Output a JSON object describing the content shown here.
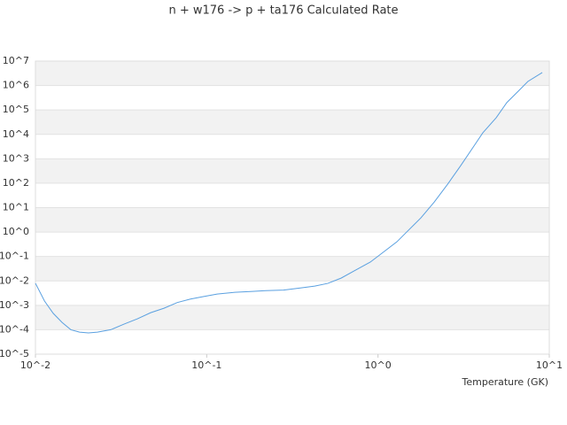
{
  "chart_data": {
    "type": "line",
    "title": "n + w176 -> p + ta176 Calculated Rate",
    "x_label": "Temperature (GK)",
    "log_x": true,
    "log_y": true,
    "grid": "alternating-bands",
    "xlim": [
      0.01,
      10
    ],
    "ylim": [
      1e-05,
      10000000.0
    ],
    "xticks": [
      {
        "value": 0.01,
        "label": "10^-2"
      },
      {
        "value": 0.1,
        "label": "10^-1"
      },
      {
        "value": 1,
        "label": "10^0"
      },
      {
        "value": 10,
        "label": "10^1"
      }
    ],
    "yticks": [
      {
        "value": 1e-05,
        "label": "10^-5"
      },
      {
        "value": 0.0001,
        "label": "10^-4"
      },
      {
        "value": 0.001,
        "label": "10^-3"
      },
      {
        "value": 0.01,
        "label": "10^-2"
      },
      {
        "value": 0.1,
        "label": "10^-1"
      },
      {
        "value": 1,
        "label": "10^0"
      },
      {
        "value": 10,
        "label": "10^1"
      },
      {
        "value": 100,
        "label": "10^2"
      },
      {
        "value": 1000,
        "label": "10^3"
      },
      {
        "value": 10000,
        "label": "10^4"
      },
      {
        "value": 100000,
        "label": "10^5"
      },
      {
        "value": 1000000,
        "label": "10^6"
      },
      {
        "value": 10000000,
        "label": "10^7"
      }
    ],
    "x": [
      0.01,
      0.0113,
      0.0127,
      0.0143,
      0.0161,
      0.0181,
      0.0204,
      0.023,
      0.0275,
      0.0329,
      0.0394,
      0.0471,
      0.0563,
      0.0673,
      0.0804,
      0.0962,
      0.115,
      0.146,
      0.185,
      0.221,
      0.281,
      0.356,
      0.427,
      0.509,
      0.609,
      0.728,
      0.902,
      1.04,
      1.29,
      1.49,
      1.78,
      2.13,
      2.55,
      3.04,
      3.63,
      4.09,
      4.9,
      5.65,
      6.6,
      7.5,
      9.1
    ],
    "series": [
      {
        "color": "#5aa0e0",
        "values": [
          0.008,
          0.0015,
          0.00047,
          0.0002,
          0.0001,
          8e-05,
          7.4e-05,
          8e-05,
          0.0001,
          0.00017,
          0.00028,
          0.0005,
          0.00076,
          0.0013,
          0.0018,
          0.0023,
          0.0029,
          0.0034,
          0.0037,
          0.004,
          0.0042,
          0.0052,
          0.0061,
          0.0079,
          0.013,
          0.026,
          0.059,
          0.126,
          0.4,
          1.1,
          3.8,
          17,
          91,
          525,
          3300,
          11500,
          48000,
          200000,
          590000,
          1470000,
          3400000
        ]
      }
    ]
  }
}
